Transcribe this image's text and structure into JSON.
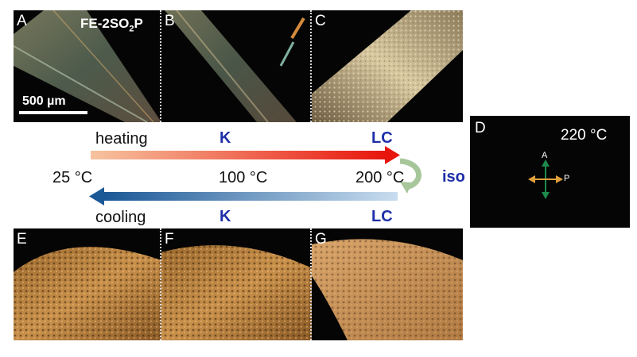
{
  "top_panels": [
    {
      "label": "A",
      "title": "FE-2SO",
      "title_sub": "2",
      "title_end": "P",
      "scale": "500 µm"
    },
    {
      "label": "B"
    },
    {
      "label": "C"
    }
  ],
  "bottom_panels": [
    {
      "label": "E"
    },
    {
      "label": "F"
    },
    {
      "label": "G"
    }
  ],
  "schematic": {
    "heating": "heating",
    "cooling": "cooling",
    "t25": "25 °C",
    "t100": "100 °C",
    "t200": "200 °C",
    "iso": "iso",
    "heat_k": "K",
    "heat_lc": "LC",
    "cool_k": "K",
    "cool_lc": "LC"
  },
  "panel_d": {
    "label": "D",
    "temp": "220 °C",
    "analyzer": "A",
    "polarizer": "P"
  },
  "colors": {
    "heating_start": "#f7c4a0",
    "heating_end": "#e8150c",
    "cooling_start": "#c9ddef",
    "cooling_end": "#1b5896",
    "phase_text": "#1d2fa8",
    "iso_arrow": "#a7c79a",
    "cross_analyzer": "#1d8a4c",
    "cross_polarizer": "#e0a13a"
  }
}
